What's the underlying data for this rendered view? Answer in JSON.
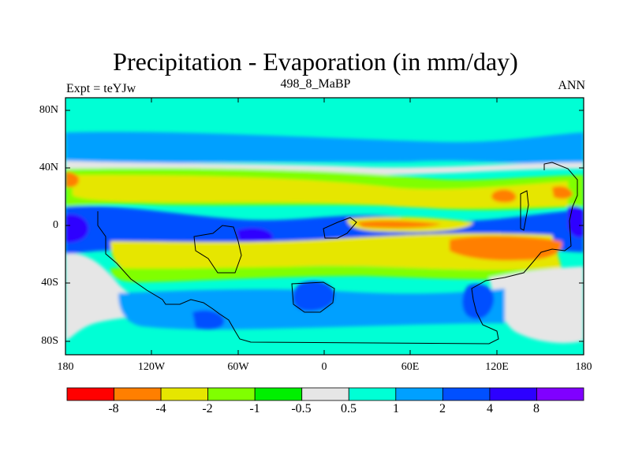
{
  "title": "Precipitation - Evaporation (in mm/day)",
  "experiment": "Expt = teYJw",
  "run_label": "498_8_MaBP",
  "period": "ANN",
  "lat_labels": [
    "80N",
    "40N",
    "0",
    "40S",
    "80S"
  ],
  "lon_labels": [
    "180",
    "120W",
    "60W",
    "0",
    "60E",
    "120E",
    "180"
  ],
  "colorbar": {
    "labels": [
      "-8",
      "-4",
      "-2",
      "-1",
      "-0.5",
      "0.5",
      "1",
      "2",
      "4",
      "8"
    ],
    "colors": [
      "#ff0000",
      "#ff7f00",
      "#e6e600",
      "#80ff00",
      "#00f000",
      "#e6e6e6",
      "#00ffd5",
      "#00a0ff",
      "#0050ff",
      "#2d00ff",
      "#8000ff"
    ]
  },
  "map_colors": {
    "ocean_light": "#00ffd5",
    "mid_blue": "#00a0ff",
    "strong_blue": "#0050ff",
    "deep_blue": "#2d00ff",
    "neutral": "#e6e6e6",
    "dry_yellow": "#e6e600",
    "dry_orange": "#ff7f00",
    "dry_green": "#80ff00",
    "dry_bright_green": "#00f000"
  }
}
